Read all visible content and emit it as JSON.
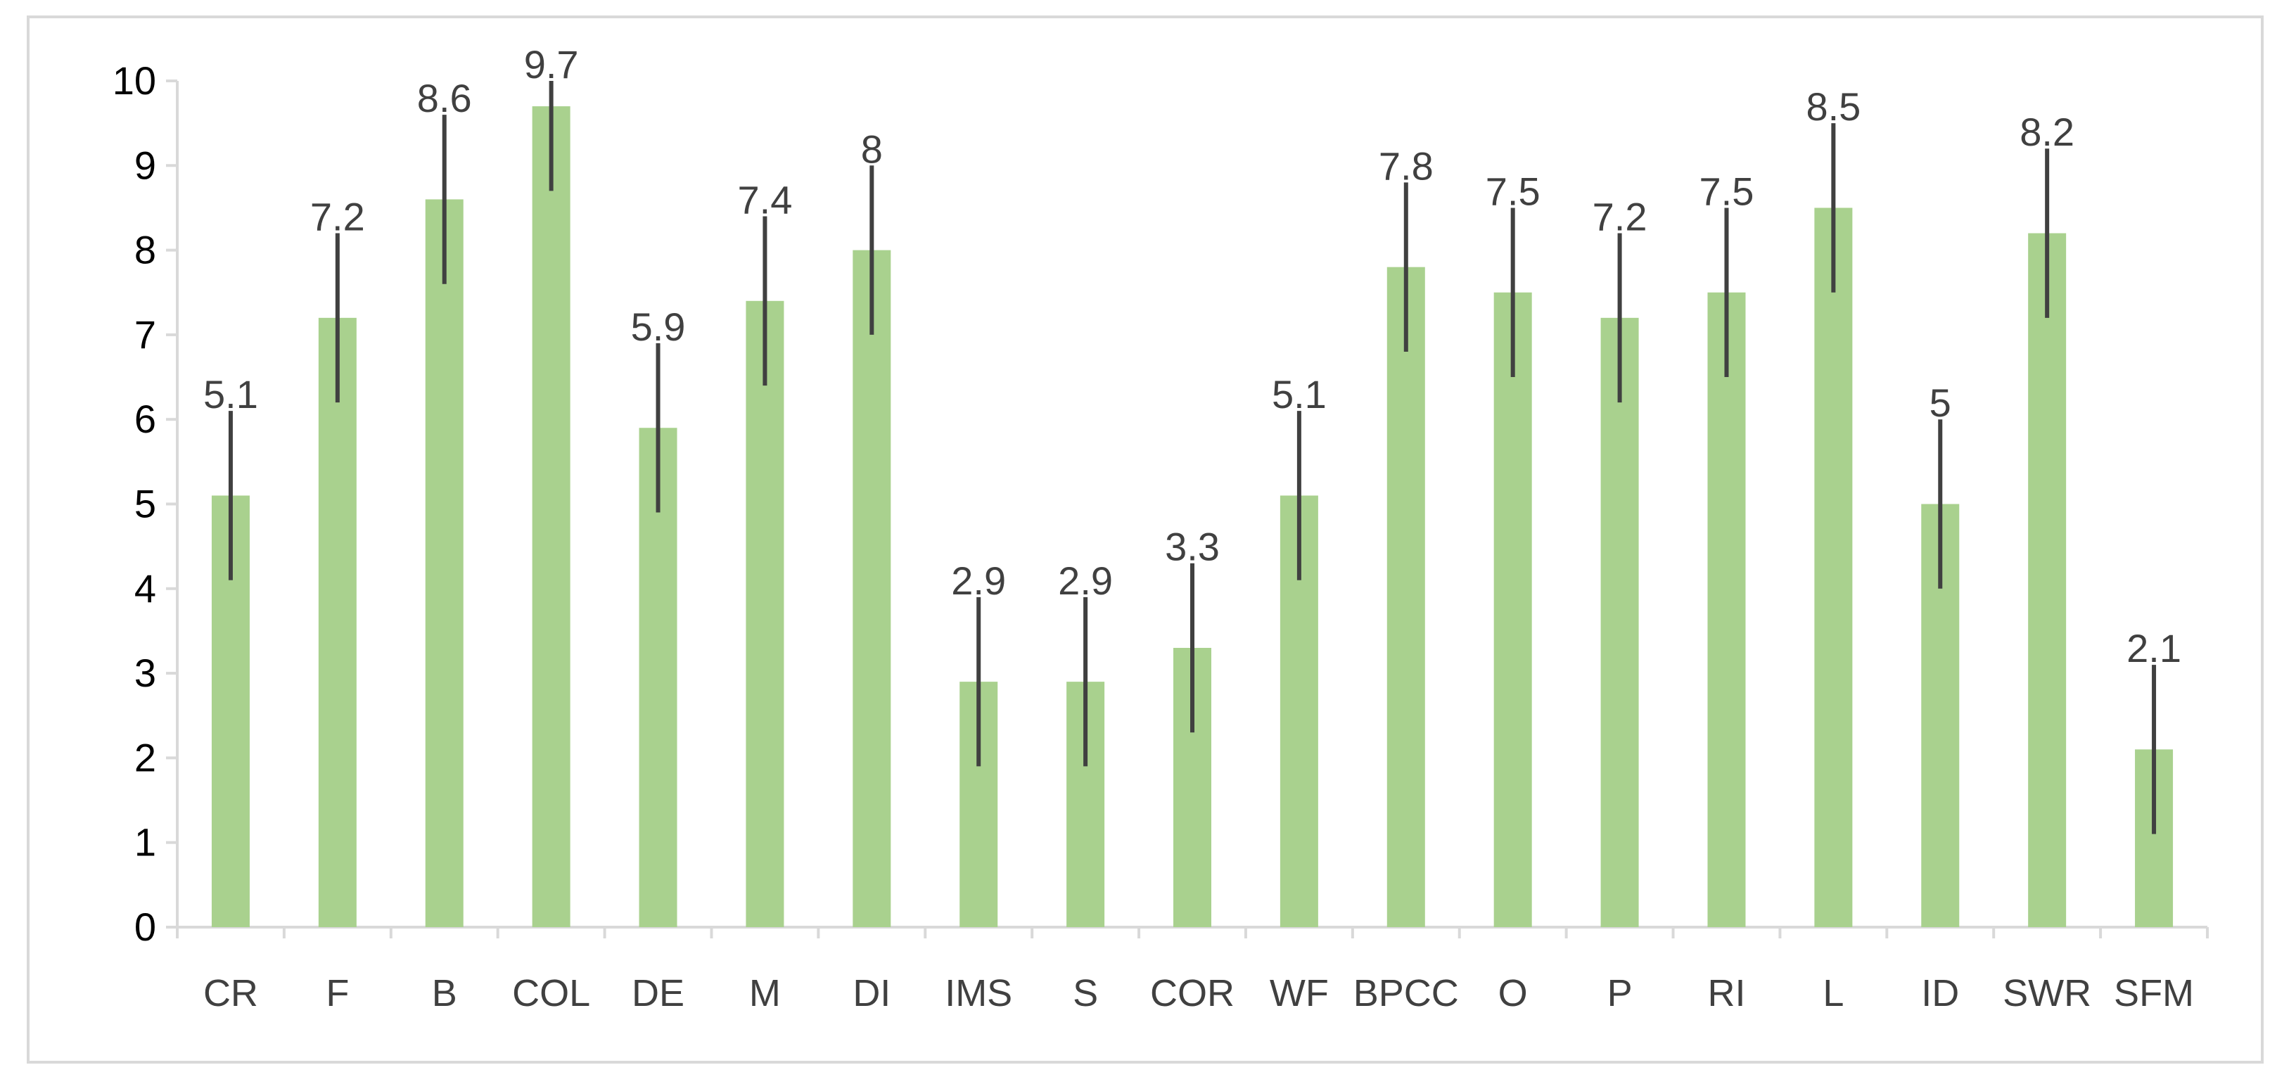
{
  "chart_data": {
    "type": "bar",
    "categories": [
      "CR",
      "F",
      "B",
      "COL",
      "DE",
      "M",
      "DI",
      "IMS",
      "S",
      "COR",
      "WF",
      "BPCC",
      "O",
      "P",
      "RI",
      "L",
      "ID",
      "SWR",
      "SFM"
    ],
    "values": [
      5.1,
      7.2,
      8.6,
      9.7,
      5.9,
      7.4,
      8,
      2.9,
      2.9,
      3.3,
      5.1,
      7.8,
      7.5,
      7.2,
      7.5,
      8.5,
      5,
      8.2,
      2.1
    ],
    "data_labels": [
      "5.1",
      "7.2",
      "8.6",
      "9.7",
      "5.9",
      "7.4",
      "8",
      "2.9",
      "2.9",
      "3.3",
      "5.1",
      "7.8",
      "7.5",
      "7.2",
      "7.5",
      "8.5",
      "5",
      "8.2",
      "2.1"
    ],
    "error_bar": 1,
    "ylim": [
      0,
      10
    ],
    "yticks": [
      "0",
      "1",
      "2",
      "3",
      "4",
      "5",
      "6",
      "7",
      "8",
      "9",
      "10"
    ],
    "grid": false,
    "legend": "none",
    "bar_color": "#a9d18e",
    "error_bar_color": "#404040"
  }
}
